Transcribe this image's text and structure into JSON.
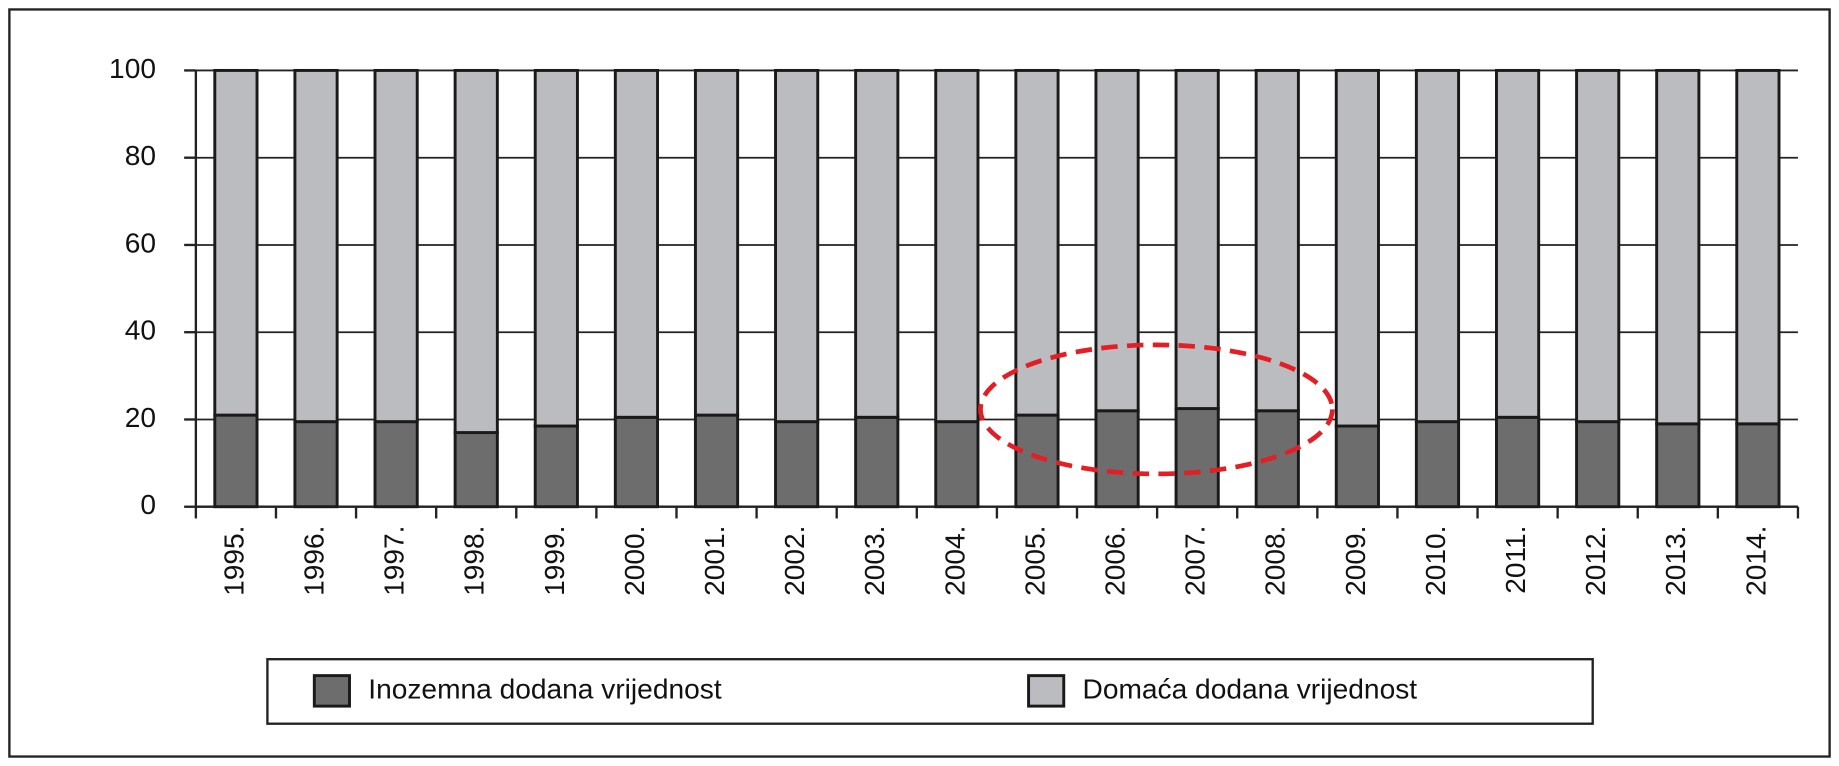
{
  "chart_data": {
    "type": "bar",
    "stacked": true,
    "categories": [
      "1995.",
      "1996.",
      "1997.",
      "1998.",
      "1999.",
      "2000.",
      "2001.",
      "2002.",
      "2003.",
      "2004.",
      "2005.",
      "2006.",
      "2007.",
      "2008.",
      "2009.",
      "2010.",
      "2011.",
      "2012.",
      "2013.",
      "2014."
    ],
    "series": [
      {
        "name": "Inozemna dodana vrijednost",
        "color": "#6d6d6d",
        "values": [
          21,
          19.5,
          19.5,
          17,
          18.5,
          20.5,
          21,
          19.5,
          20.5,
          19.5,
          21,
          22,
          22.5,
          22,
          18.5,
          19.5,
          20.5,
          19.5,
          19,
          19
        ]
      },
      {
        "name": "Domaća dodana vrijednost",
        "color": "#bbbcc0",
        "values": [
          79,
          80.5,
          80.5,
          83,
          81.5,
          79.5,
          79,
          80.5,
          79.5,
          80.5,
          79,
          78,
          77.5,
          78,
          81.5,
          80.5,
          79.5,
          80.5,
          81,
          81
        ]
      }
    ],
    "ylim": [
      0,
      100
    ],
    "yticks": [
      0,
      20,
      40,
      60,
      80,
      100
    ],
    "grid": true,
    "legend": "bottom"
  }
}
